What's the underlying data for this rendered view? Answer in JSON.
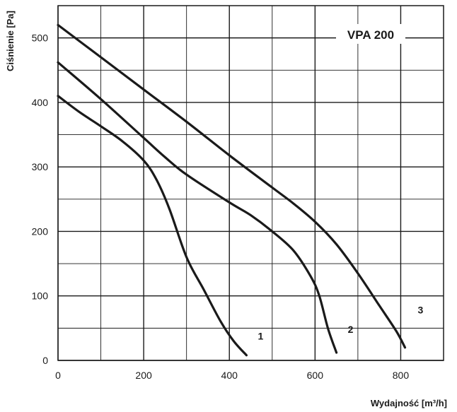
{
  "chart_data": {
    "type": "line",
    "title": "VPA 200",
    "xlabel": "Wydajność [m³/h]",
    "ylabel": "Ciśnienie [Pa]",
    "xlim": [
      0,
      900
    ],
    "ylim": [
      0,
      550
    ],
    "xticks": [
      "0",
      "200",
      "400",
      "600",
      "800"
    ],
    "yticks": [
      "0",
      "100",
      "200",
      "300",
      "400",
      "500"
    ],
    "grid": true,
    "series": [
      {
        "name": "1",
        "x": [
          0,
          50,
          100,
          150,
          200,
          230,
          260,
          300,
          340,
          380,
          410,
          440
        ],
        "y": [
          410,
          385,
          363,
          340,
          310,
          280,
          235,
          160,
          110,
          60,
          30,
          8
        ]
      },
      {
        "name": "2",
        "x": [
          0,
          100,
          200,
          250,
          300,
          400,
          450,
          500,
          550,
          590,
          610,
          630,
          650
        ],
        "y": [
          462,
          405,
          345,
          315,
          288,
          245,
          225,
          200,
          170,
          130,
          100,
          50,
          12
        ]
      },
      {
        "name": "3",
        "x": [
          0,
          100,
          200,
          300,
          400,
          500,
          550,
          600,
          650,
          700,
          750,
          790,
          810
        ],
        "y": [
          520,
          470,
          420,
          370,
          318,
          268,
          243,
          215,
          180,
          135,
          85,
          45,
          20
        ]
      }
    ]
  }
}
